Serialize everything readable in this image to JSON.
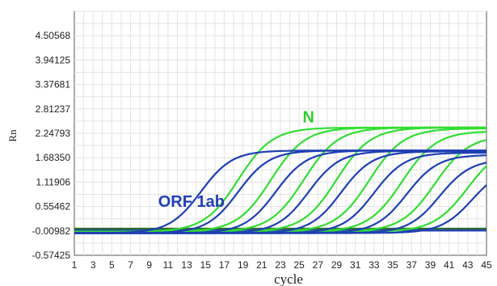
{
  "chart_data": {
    "type": "line",
    "title": "",
    "xlabel": "cycle",
    "ylabel": "Rn",
    "xlim": [
      1,
      45
    ],
    "ylim": [
      -0.57425,
      5.0701
    ],
    "grid": true,
    "legend": "none",
    "x_ticks": [
      "1",
      "3",
      "5",
      "7",
      "9",
      "11",
      "13",
      "15",
      "17",
      "19",
      "21",
      "23",
      "25",
      "27",
      "29",
      "31",
      "33",
      "35",
      "37",
      "39",
      "41",
      "43",
      "45"
    ],
    "y_ticks": [
      "-0.57425",
      "-0.00982",
      "0.55462",
      "1.11906",
      "1.68350",
      "2.24793",
      "2.81237",
      "3.37681",
      "3.94125",
      "4.50568"
    ],
    "annotations": [
      {
        "text": "N",
        "x": 26,
        "y": 2.5,
        "color": "#33cc33"
      },
      {
        "text": "ORF 1ab",
        "x": 13.5,
        "y": 0.55,
        "color": "#1f3fb3"
      }
    ],
    "threshold_lines": [
      {
        "y": 0.04,
        "color": "#2d6b2d"
      },
      {
        "y": 0.0,
        "color": "#1f3fb3"
      }
    ],
    "series": [
      {
        "group": "N",
        "color": "#33dd33",
        "baseline": -0.03,
        "plateau": 2.38,
        "midpoint": 18.5,
        "slope": 0.55
      },
      {
        "group": "N",
        "color": "#33dd33",
        "baseline": -0.03,
        "plateau": 2.38,
        "midpoint": 22.0,
        "slope": 0.55
      },
      {
        "group": "N",
        "color": "#33dd33",
        "baseline": -0.03,
        "plateau": 2.38,
        "midpoint": 25.5,
        "slope": 0.55
      },
      {
        "group": "N",
        "color": "#33dd33",
        "baseline": -0.03,
        "plateau": 2.38,
        "midpoint": 29.0,
        "slope": 0.55
      },
      {
        "group": "N",
        "color": "#33dd33",
        "baseline": -0.03,
        "plateau": 2.36,
        "midpoint": 32.5,
        "slope": 0.55
      },
      {
        "group": "N",
        "color": "#33dd33",
        "baseline": -0.03,
        "plateau": 2.3,
        "midpoint": 36.0,
        "slope": 0.55
      },
      {
        "group": "N",
        "color": "#33dd33",
        "baseline": -0.03,
        "plateau": 2.2,
        "midpoint": 39.5,
        "slope": 0.55
      },
      {
        "group": "N",
        "color": "#33dd33",
        "baseline": -0.03,
        "plateau": 2.0,
        "midpoint": 43.0,
        "slope": 0.55
      },
      {
        "group": "ORF 1ab",
        "color": "#1f3fb3",
        "baseline": -0.06,
        "plateau": 1.85,
        "midpoint": 14.5,
        "slope": 0.6
      },
      {
        "group": "ORF 1ab",
        "color": "#1f3fb3",
        "baseline": -0.06,
        "plateau": 1.85,
        "midpoint": 18.5,
        "slope": 0.6
      },
      {
        "group": "ORF 1ab",
        "color": "#1f3fb3",
        "baseline": -0.06,
        "plateau": 1.85,
        "midpoint": 22.5,
        "slope": 0.6
      },
      {
        "group": "ORF 1ab",
        "color": "#1f3fb3",
        "baseline": -0.06,
        "plateau": 1.84,
        "midpoint": 26.0,
        "slope": 0.6
      },
      {
        "group": "ORF 1ab",
        "color": "#1f3fb3",
        "baseline": -0.06,
        "plateau": 1.83,
        "midpoint": 29.5,
        "slope": 0.6
      },
      {
        "group": "ORF 1ab",
        "color": "#1f3fb3",
        "baseline": -0.06,
        "plateau": 1.8,
        "midpoint": 33.0,
        "slope": 0.6
      },
      {
        "group": "ORF 1ab",
        "color": "#1f3fb3",
        "baseline": -0.06,
        "plateau": 1.75,
        "midpoint": 36.5,
        "slope": 0.6
      },
      {
        "group": "ORF 1ab",
        "color": "#1f3fb3",
        "baseline": -0.06,
        "plateau": 1.65,
        "midpoint": 40.0,
        "slope": 0.6
      },
      {
        "group": "ORF 1ab",
        "color": "#1f3fb3",
        "baseline": -0.06,
        "plateau": 1.5,
        "midpoint": 43.5,
        "slope": 0.6
      }
    ]
  }
}
